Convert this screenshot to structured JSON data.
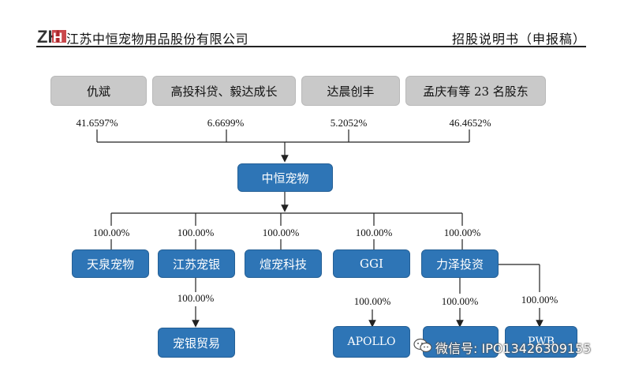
{
  "header": {
    "logo_text": "ZH",
    "company": "江苏中恒宠物用品股份有限公司",
    "doc_title": "招股说明书（申报稿）"
  },
  "shareholders": [
    {
      "name": "仇斌",
      "pct": "41.6597%"
    },
    {
      "name": "高投科贷、毅达成长",
      "pct": "6.6699%"
    },
    {
      "name": "达晨创丰",
      "pct": "5.2052%"
    },
    {
      "name": "孟庆有等 23 名股东",
      "pct": "46.4652%"
    }
  ],
  "company": {
    "name": "中恒宠物"
  },
  "subsidiaries": [
    {
      "name": "天泉宠物",
      "pct": "100.00%"
    },
    {
      "name": "江苏宠银",
      "pct": "100.00%"
    },
    {
      "name": "煊宠科技",
      "pct": "100.00%"
    },
    {
      "name": "GGI",
      "pct": "100.00%"
    },
    {
      "name": "力泽投资",
      "pct": "100.00%"
    }
  ],
  "third_level": [
    {
      "name": "宠银贸易",
      "pct": "100.00%"
    },
    {
      "name": "APOLLO",
      "pct": "100.00%"
    },
    {
      "name": "",
      "pct": "100.00%"
    },
    {
      "name": "PWB",
      "pct": "100.00%"
    }
  ],
  "watermark": {
    "text": "微信号: IPO13426309155",
    "icon": "wechat-icon"
  }
}
